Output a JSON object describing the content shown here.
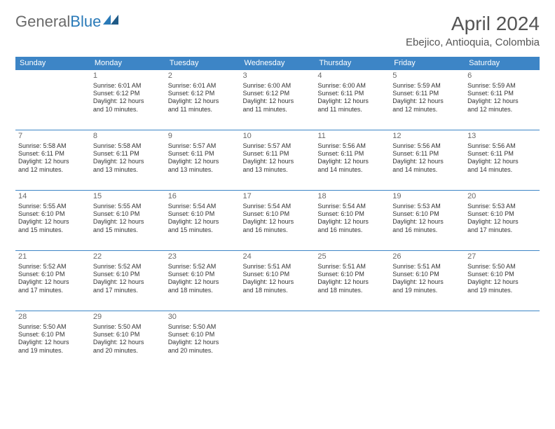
{
  "logo": {
    "text1": "General",
    "text2": "Blue"
  },
  "title": "April 2024",
  "location": "Ebejico, Antioquia, Colombia",
  "colors": {
    "header_bg": "#3d85c6",
    "header_text": "#ffffff",
    "border": "#3d85c6",
    "daynum": "#6a6a6a",
    "body_text": "#333333",
    "title_text": "#555555",
    "logo_gray": "#6a6a6a",
    "logo_blue": "#2a7ab8",
    "page_bg": "#ffffff"
  },
  "weekdays": [
    "Sunday",
    "Monday",
    "Tuesday",
    "Wednesday",
    "Thursday",
    "Friday",
    "Saturday"
  ],
  "weeks": [
    [
      null,
      {
        "n": "1",
        "sr": "6:01 AM",
        "ss": "6:12 PM",
        "d1": "12 hours",
        "d2": "and 10 minutes."
      },
      {
        "n": "2",
        "sr": "6:01 AM",
        "ss": "6:12 PM",
        "d1": "12 hours",
        "d2": "and 11 minutes."
      },
      {
        "n": "3",
        "sr": "6:00 AM",
        "ss": "6:12 PM",
        "d1": "12 hours",
        "d2": "and 11 minutes."
      },
      {
        "n": "4",
        "sr": "6:00 AM",
        "ss": "6:11 PM",
        "d1": "12 hours",
        "d2": "and 11 minutes."
      },
      {
        "n": "5",
        "sr": "5:59 AM",
        "ss": "6:11 PM",
        "d1": "12 hours",
        "d2": "and 12 minutes."
      },
      {
        "n": "6",
        "sr": "5:59 AM",
        "ss": "6:11 PM",
        "d1": "12 hours",
        "d2": "and 12 minutes."
      }
    ],
    [
      {
        "n": "7",
        "sr": "5:58 AM",
        "ss": "6:11 PM",
        "d1": "12 hours",
        "d2": "and 12 minutes."
      },
      {
        "n": "8",
        "sr": "5:58 AM",
        "ss": "6:11 PM",
        "d1": "12 hours",
        "d2": "and 13 minutes."
      },
      {
        "n": "9",
        "sr": "5:57 AM",
        "ss": "6:11 PM",
        "d1": "12 hours",
        "d2": "and 13 minutes."
      },
      {
        "n": "10",
        "sr": "5:57 AM",
        "ss": "6:11 PM",
        "d1": "12 hours",
        "d2": "and 13 minutes."
      },
      {
        "n": "11",
        "sr": "5:56 AM",
        "ss": "6:11 PM",
        "d1": "12 hours",
        "d2": "and 14 minutes."
      },
      {
        "n": "12",
        "sr": "5:56 AM",
        "ss": "6:11 PM",
        "d1": "12 hours",
        "d2": "and 14 minutes."
      },
      {
        "n": "13",
        "sr": "5:56 AM",
        "ss": "6:11 PM",
        "d1": "12 hours",
        "d2": "and 14 minutes."
      }
    ],
    [
      {
        "n": "14",
        "sr": "5:55 AM",
        "ss": "6:10 PM",
        "d1": "12 hours",
        "d2": "and 15 minutes."
      },
      {
        "n": "15",
        "sr": "5:55 AM",
        "ss": "6:10 PM",
        "d1": "12 hours",
        "d2": "and 15 minutes."
      },
      {
        "n": "16",
        "sr": "5:54 AM",
        "ss": "6:10 PM",
        "d1": "12 hours",
        "d2": "and 15 minutes."
      },
      {
        "n": "17",
        "sr": "5:54 AM",
        "ss": "6:10 PM",
        "d1": "12 hours",
        "d2": "and 16 minutes."
      },
      {
        "n": "18",
        "sr": "5:54 AM",
        "ss": "6:10 PM",
        "d1": "12 hours",
        "d2": "and 16 minutes."
      },
      {
        "n": "19",
        "sr": "5:53 AM",
        "ss": "6:10 PM",
        "d1": "12 hours",
        "d2": "and 16 minutes."
      },
      {
        "n": "20",
        "sr": "5:53 AM",
        "ss": "6:10 PM",
        "d1": "12 hours",
        "d2": "and 17 minutes."
      }
    ],
    [
      {
        "n": "21",
        "sr": "5:52 AM",
        "ss": "6:10 PM",
        "d1": "12 hours",
        "d2": "and 17 minutes."
      },
      {
        "n": "22",
        "sr": "5:52 AM",
        "ss": "6:10 PM",
        "d1": "12 hours",
        "d2": "and 17 minutes."
      },
      {
        "n": "23",
        "sr": "5:52 AM",
        "ss": "6:10 PM",
        "d1": "12 hours",
        "d2": "and 18 minutes."
      },
      {
        "n": "24",
        "sr": "5:51 AM",
        "ss": "6:10 PM",
        "d1": "12 hours",
        "d2": "and 18 minutes."
      },
      {
        "n": "25",
        "sr": "5:51 AM",
        "ss": "6:10 PM",
        "d1": "12 hours",
        "d2": "and 18 minutes."
      },
      {
        "n": "26",
        "sr": "5:51 AM",
        "ss": "6:10 PM",
        "d1": "12 hours",
        "d2": "and 19 minutes."
      },
      {
        "n": "27",
        "sr": "5:50 AM",
        "ss": "6:10 PM",
        "d1": "12 hours",
        "d2": "and 19 minutes."
      }
    ],
    [
      {
        "n": "28",
        "sr": "5:50 AM",
        "ss": "6:10 PM",
        "d1": "12 hours",
        "d2": "and 19 minutes."
      },
      {
        "n": "29",
        "sr": "5:50 AM",
        "ss": "6:10 PM",
        "d1": "12 hours",
        "d2": "and 20 minutes."
      },
      {
        "n": "30",
        "sr": "5:50 AM",
        "ss": "6:10 PM",
        "d1": "12 hours",
        "d2": "and 20 minutes."
      },
      null,
      null,
      null,
      null
    ]
  ],
  "labels": {
    "sunrise": "Sunrise:",
    "sunset": "Sunset:",
    "daylight": "Daylight:"
  }
}
